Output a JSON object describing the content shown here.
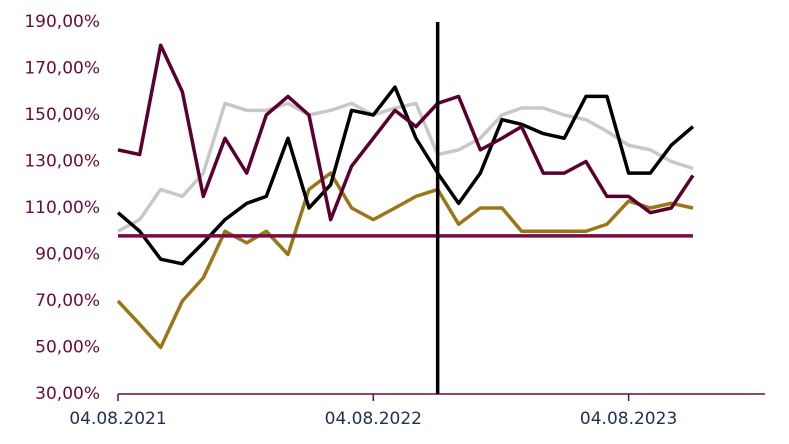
{
  "chart_data": {
    "type": "line",
    "x": [
      "04.08.2021",
      "04.09.2021",
      "04.10.2021",
      "04.11.2021",
      "04.12.2021",
      "04.01.2022",
      "04.02.2022",
      "04.03.2022",
      "04.04.2022",
      "04.05.2022",
      "04.06.2022",
      "04.07.2022",
      "04.08.2022",
      "04.09.2022",
      "04.10.2022",
      "04.11.2022",
      "04.12.2022",
      "04.01.2023",
      "04.02.2023",
      "04.03.2023",
      "04.04.2023",
      "04.05.2023",
      "04.06.2023",
      "04.07.2023",
      "04.08.2023",
      "04.09.2023",
      "04.10.2023",
      "04.11.2023"
    ],
    "series": [
      {
        "color": "#c8c8c8",
        "values": [
          100,
          105,
          118,
          115,
          125,
          155,
          152,
          152,
          155,
          150,
          152,
          155,
          150,
          153,
          155,
          133,
          135,
          140,
          150,
          153,
          153,
          150,
          148,
          143,
          137,
          135,
          130,
          127
        ]
      },
      {
        "color": "#9a7618",
        "values": [
          70,
          60,
          50,
          70,
          80,
          100,
          95,
          100,
          90,
          118,
          125,
          110,
          105,
          110,
          115,
          118,
          103,
          110,
          110,
          100,
          100,
          100,
          100,
          103,
          113,
          110,
          112,
          110
        ]
      },
      {
        "color": "#000000",
        "values": [
          108,
          100,
          88,
          86,
          95,
          105,
          112,
          115,
          140,
          110,
          120,
          152,
          150,
          162,
          140,
          125,
          112,
          125,
          148,
          146,
          142,
          140,
          158,
          158,
          125,
          125,
          137,
          145
        ]
      },
      {
        "color": "#5a0030",
        "values": [
          135,
          133,
          180,
          160,
          115,
          140,
          125,
          150,
          158,
          150,
          105,
          128,
          140,
          152,
          145,
          155,
          158,
          135,
          140,
          145,
          125,
          125,
          130,
          115,
          115,
          108,
          110,
          124
        ]
      }
    ],
    "hline": 98,
    "hline_color": "#7a0a45",
    "vline": "04.11.2022",
    "vline_color": "#000000",
    "xlim": [
      "04.08.2021",
      "15.02.2024"
    ],
    "xticks": [
      "04.08.2021",
      "04.08.2022",
      "04.08.2023"
    ],
    "ylim": [
      30,
      190
    ],
    "yticks": [
      {
        "value": 30,
        "label": "30,00%"
      },
      {
        "value": 50,
        "label": "50,00%"
      },
      {
        "value": 70,
        "label": "70,00%"
      },
      {
        "value": 90,
        "label": "90,00%"
      },
      {
        "value": 110,
        "label": "110,00%"
      },
      {
        "value": 130,
        "label": "130,00%"
      },
      {
        "value": 150,
        "label": "150,00%"
      },
      {
        "value": 170,
        "label": "170,00%"
      },
      {
        "value": 190,
        "label": "190,00%"
      }
    ]
  }
}
